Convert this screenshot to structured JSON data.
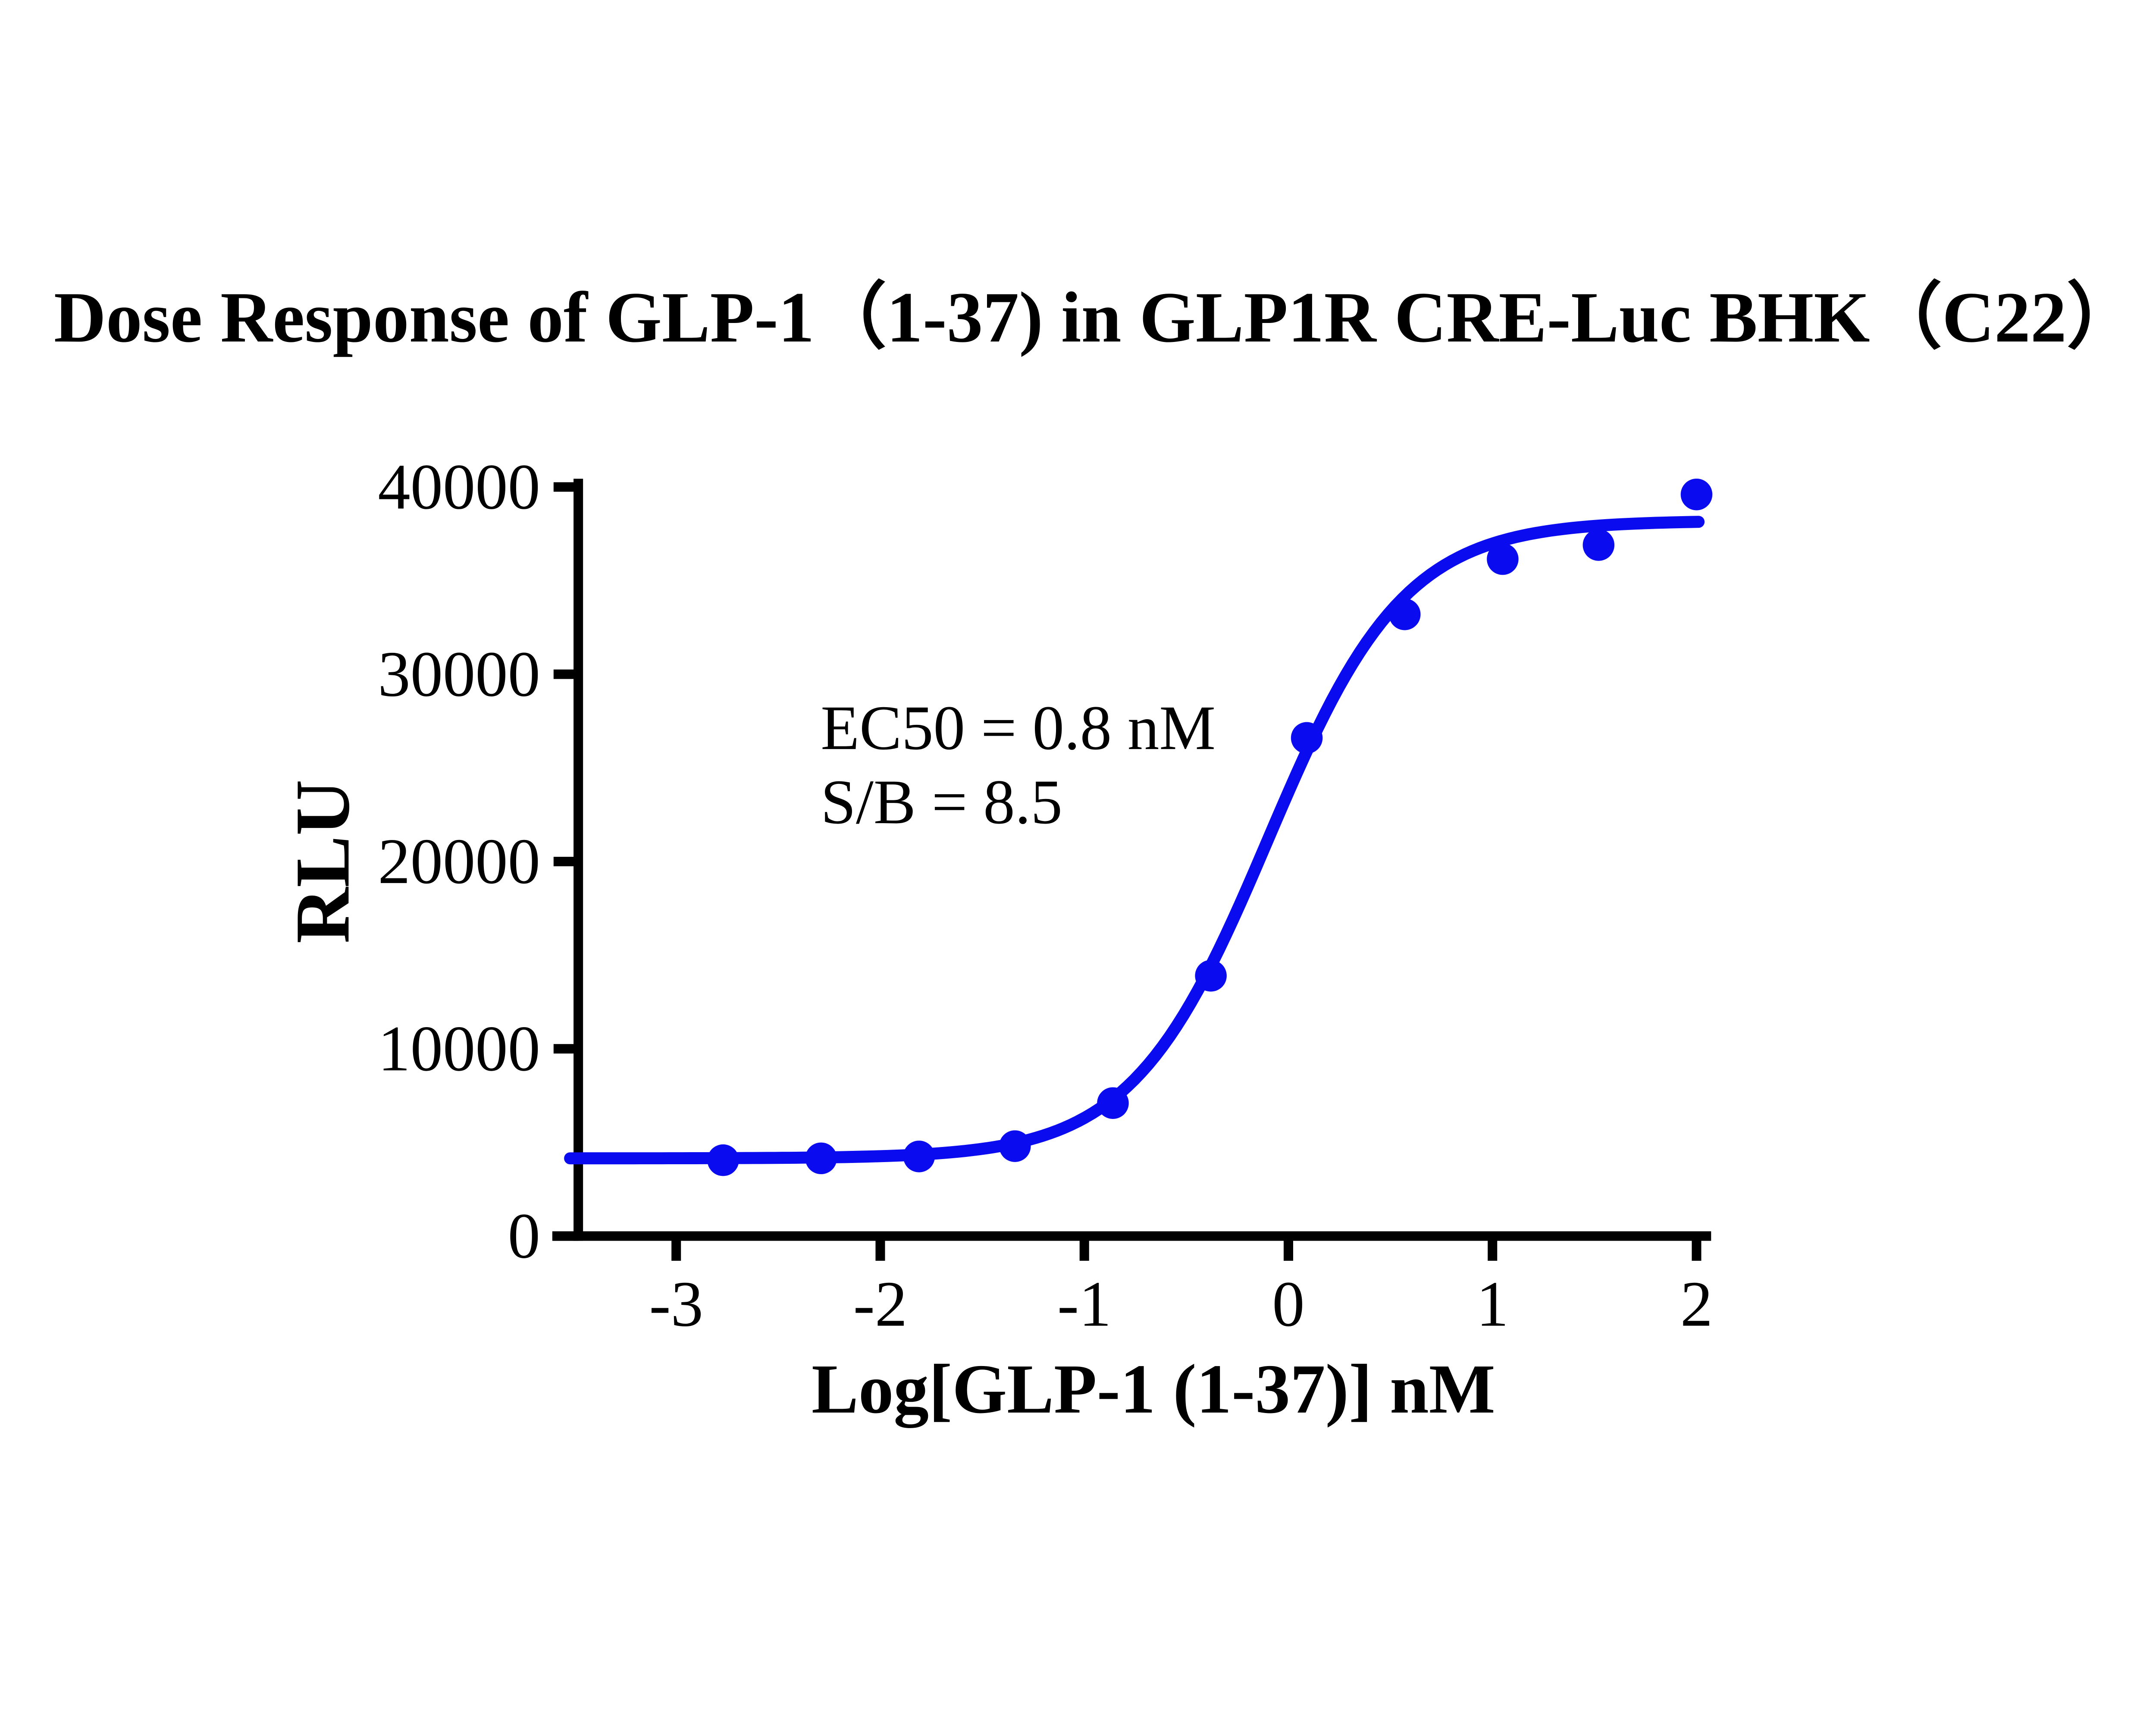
{
  "title": "Dose Response of GLP-1（1-37) in GLP1R CRE-Luc BHK（C22）",
  "annotation": {
    "line1": "EC50 = 0.8 nM",
    "line2": "S/B = 8.5"
  },
  "chart_data": {
    "type": "scatter",
    "title": "Dose Response of GLP-1（1-37) in GLP1R CRE-Luc BHK（C22）",
    "xlabel": "Log[GLP-1 (1-37)] nM",
    "ylabel": "RLU",
    "xlim": [
      -3.6,
      2.05
    ],
    "ylim": [
      0,
      40000
    ],
    "x_ticks": [
      -3,
      -2,
      -1,
      0,
      1,
      2
    ],
    "y_ticks": [
      0,
      10000,
      20000,
      30000,
      40000
    ],
    "grid": false,
    "legend": "none",
    "annotations": [
      "EC50 = 0.8 nM",
      "S/B = 8.5"
    ],
    "series": [
      {
        "name": "GLP-1 (1-37)",
        "marker": "filled-circle",
        "color": "#0B0BEF",
        "points": [
          {
            "x": -2.77,
            "y": 4050
          },
          {
            "x": -2.29,
            "y": 4150
          },
          {
            "x": -1.81,
            "y": 4250
          },
          {
            "x": -1.34,
            "y": 4800
          },
          {
            "x": -0.86,
            "y": 7100
          },
          {
            "x": -0.38,
            "y": 13900
          },
          {
            "x": 0.09,
            "y": 26600
          },
          {
            "x": 0.57,
            "y": 33200
          },
          {
            "x": 1.05,
            "y": 36150
          },
          {
            "x": 1.52,
            "y": 36900
          },
          {
            "x": 2.0,
            "y": 39600
          }
        ]
      }
    ],
    "fit_curve": {
      "model": "4PL-sigmoid",
      "bottom": 4150,
      "top": 38200,
      "logEC50": -0.1,
      "hill_slope": 1.3,
      "x_start": -3.52,
      "x_end": 2.01,
      "color": "#0B0BEF"
    },
    "colors": {
      "curve": "#0B0BEF",
      "axis": "#000000",
      "text": "#000000",
      "background": "#FFFFFF"
    }
  }
}
